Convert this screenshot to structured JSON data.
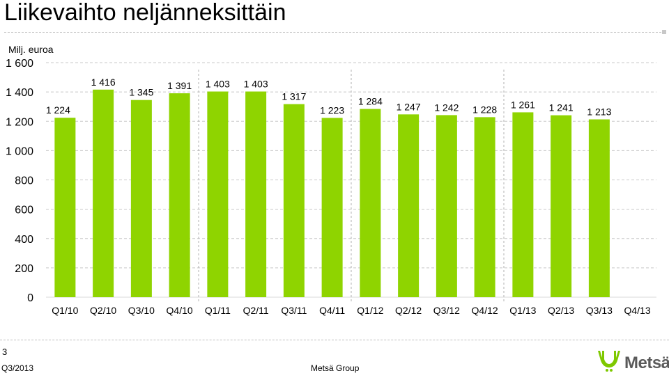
{
  "header": {
    "title": "Liikevaihto neljänneksittäin"
  },
  "footer": {
    "page_number": "3",
    "date": "Q3/2013",
    "company": "Metsä Group",
    "logo_text": "Metsä"
  },
  "colors": {
    "bar": "#8fd400",
    "grid": "#c8c8c8",
    "divider": "#b0b0b0",
    "logo_green": "#7ec800",
    "logo_text": "#5a5a5a"
  },
  "chart_data": {
    "type": "bar",
    "ylabel": "Milj. euroa",
    "ylim": [
      0,
      1600
    ],
    "yticks": [
      0,
      200,
      400,
      600,
      800,
      1000,
      1200,
      1400,
      1600
    ],
    "ytick_labels": [
      "0",
      "200",
      "400",
      "600",
      "800",
      "1 000",
      "1 200",
      "1 400",
      "1 600"
    ],
    "grid": true,
    "categories": [
      "Q1/10",
      "Q2/10",
      "Q3/10",
      "Q4/10",
      "Q1/11",
      "Q2/11",
      "Q3/11",
      "Q4/11",
      "Q1/12",
      "Q2/12",
      "Q3/12",
      "Q4/12",
      "Q1/13",
      "Q2/13",
      "Q3/13",
      "Q4/13"
    ],
    "values": [
      1224,
      1416,
      1345,
      1391,
      1403,
      1403,
      1317,
      1223,
      1284,
      1247,
      1242,
      1228,
      1261,
      1241,
      1213,
      null
    ],
    "value_labels": [
      "1 224",
      "1 416",
      "1 345",
      "1 391",
      "1 403",
      "1 403",
      "1 317",
      "1 223",
      "1 284",
      "1 247",
      "1 242",
      "1 228",
      "1 261",
      "1 241",
      "1 213",
      ""
    ],
    "year_dividers_after": [
      "Q4/10",
      "Q4/11",
      "Q4/12"
    ]
  }
}
